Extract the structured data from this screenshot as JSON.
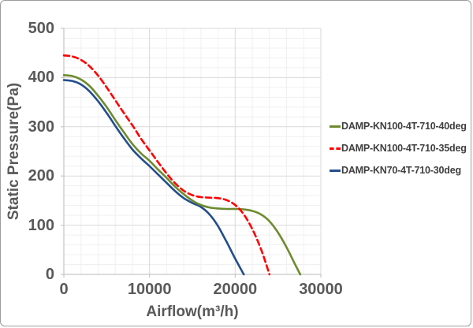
{
  "chart_data": {
    "type": "line",
    "title": "",
    "xlabel": "Airflow(m³/h)",
    "ylabel": "Static Pressure(Pa)",
    "xlim": [
      0,
      30000
    ],
    "ylim": [
      0,
      500
    ],
    "x_ticks": [
      0,
      10000,
      20000,
      30000
    ],
    "y_ticks": [
      0,
      100,
      200,
      300,
      400,
      500
    ],
    "x_minor_step": 2000,
    "y_minor_step": 20,
    "grid": "major-and-minor",
    "legend_position": "right",
    "colors": {
      "major_grid": "#d9d9d9",
      "minor_grid": "#f0f0f0",
      "axis_line": "#c6c6c6",
      "tick_text": "#595959",
      "legend_text": "#3f3f3f"
    },
    "series": [
      {
        "name": "DAMP-KN100-4T-710-40deg",
        "color": "#6d8b2e",
        "style": "solid",
        "x": [
          0,
          1000,
          2000,
          3000,
          4000,
          5000,
          6000,
          7000,
          8000,
          9000,
          10000,
          11000,
          12000,
          13000,
          14000,
          15000,
          16000,
          17000,
          18000,
          19000,
          20000,
          21000,
          22000,
          23000,
          24000,
          25000,
          26000,
          27000,
          27600
        ],
        "y": [
          405,
          403,
          396,
          383,
          363,
          340,
          314,
          289,
          265,
          246,
          231,
          213,
          196,
          178,
          163,
          150,
          141,
          136,
          134,
          133,
          133,
          132,
          129,
          122,
          108,
          85,
          55,
          20,
          0
        ]
      },
      {
        "name": "DAMP-KN100-4T-710-35deg",
        "color": "#ff0000",
        "style": "dashed",
        "x": [
          0,
          1000,
          2000,
          3000,
          4000,
          5000,
          6000,
          7000,
          8000,
          9000,
          10000,
          11000,
          12000,
          13000,
          14000,
          15000,
          16000,
          17000,
          18000,
          19000,
          20000,
          21000,
          22000,
          23000,
          24000
        ],
        "y": [
          445,
          443,
          436,
          423,
          404,
          380,
          354,
          328,
          303,
          276,
          252,
          228,
          205,
          185,
          170,
          161,
          157,
          156,
          155,
          151,
          141,
          122,
          92,
          52,
          0
        ]
      },
      {
        "name": "DAMP-KN70-4T-710-30deg",
        "color": "#234e8d",
        "style": "solid",
        "x": [
          0,
          1000,
          2000,
          3000,
          4000,
          5000,
          6000,
          7000,
          8000,
          9000,
          10000,
          11000,
          12000,
          13000,
          14000,
          15000,
          16000,
          17000,
          18000,
          19000,
          20000,
          21000
        ],
        "y": [
          395,
          393,
          386,
          372,
          352,
          328,
          302,
          277,
          254,
          236,
          220,
          203,
          186,
          169,
          155,
          145,
          137,
          122,
          98,
          66,
          32,
          0
        ]
      }
    ]
  }
}
